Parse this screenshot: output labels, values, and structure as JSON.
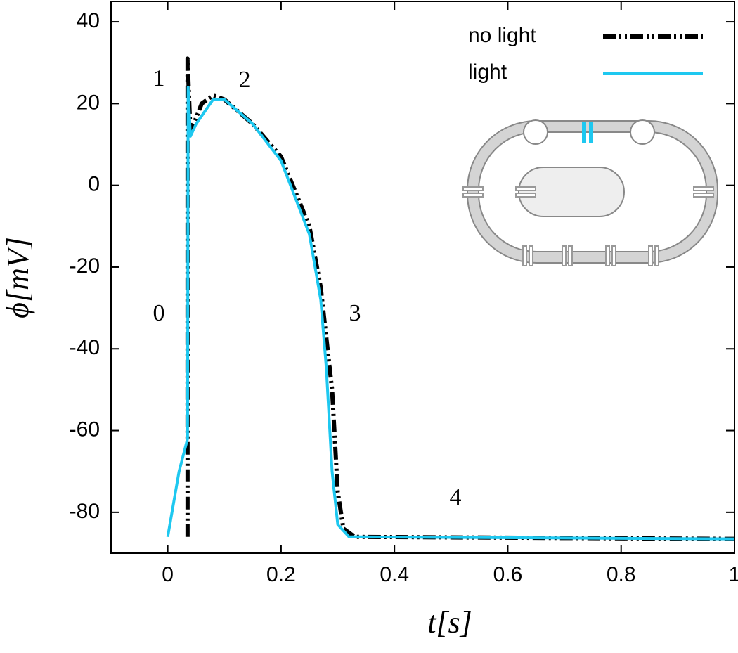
{
  "chart_data": {
    "type": "line",
    "x_label": "t[s]",
    "y_label": "ϕ[mV]",
    "xlim": [
      -0.1,
      1
    ],
    "ylim": [
      -90,
      45
    ],
    "xticks": [
      0,
      0.2,
      0.4,
      0.6,
      0.8,
      1
    ],
    "yticks": [
      -80,
      -60,
      -40,
      -20,
      0,
      20,
      40
    ],
    "legend": "top-right",
    "annotations": [
      "0",
      "1",
      "2",
      "3",
      "4"
    ],
    "series": [
      {
        "name": "no light",
        "color": "#000000",
        "dash": "dash-dot-dot",
        "x": [
          0.035,
          0.035,
          0.04,
          0.06,
          0.08,
          0.1,
          0.15,
          0.2,
          0.25,
          0.27,
          0.29,
          0.3,
          0.31,
          0.33,
          1.0
        ],
        "values": [
          -86,
          31,
          13,
          20,
          22,
          21,
          15,
          7,
          -10,
          -25,
          -50,
          -75,
          -84,
          -86,
          -86.5
        ]
      },
      {
        "name": "light",
        "color": "#1ec8f0",
        "dash": "solid",
        "x": [
          0,
          0.02,
          0.035,
          0.036,
          0.04,
          0.05,
          0.08,
          0.1,
          0.15,
          0.2,
          0.25,
          0.27,
          0.28,
          0.29,
          0.3,
          0.32,
          1.0
        ],
        "values": [
          -86,
          -70,
          -62,
          24,
          12,
          15,
          21,
          21,
          15,
          6,
          -12,
          -28,
          -45,
          -70,
          -83,
          -86,
          -86.5
        ]
      }
    ]
  }
}
